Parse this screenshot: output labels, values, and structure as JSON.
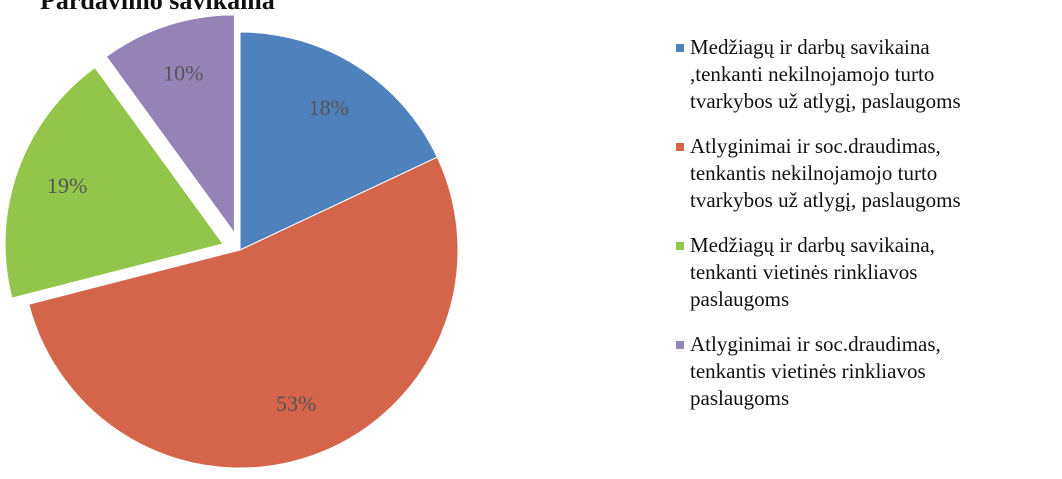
{
  "chart_data": {
    "type": "pie",
    "title": "Pardavimo savikaina",
    "categories": [
      "Medžiagų ir darbų savikaina\n,tenkanti nekilnojamojo turto\ntvarkybos už atlygį, paslaugoms",
      "Atlyginimai ir soc.draudimas,\ntenkantis nekilnojamojo turto\ntvarkybos už atlygį, paslaugoms",
      "Medžiagų ir darbų savikaina,\ntenkanti vietinės rinkliavos\npaslaugoms",
      "Atlyginimai ir soc.draudimas,\ntenkantis vietinės rinkliavos\npaslaugoms"
    ],
    "values": [
      18,
      53,
      19,
      10
    ],
    "value_labels": [
      "18%",
      "53%",
      "19%",
      "10%"
    ],
    "colors": [
      "#4f81bd",
      "#d4654a",
      "#93c54b",
      "#9583b8"
    ],
    "legend": "right"
  }
}
